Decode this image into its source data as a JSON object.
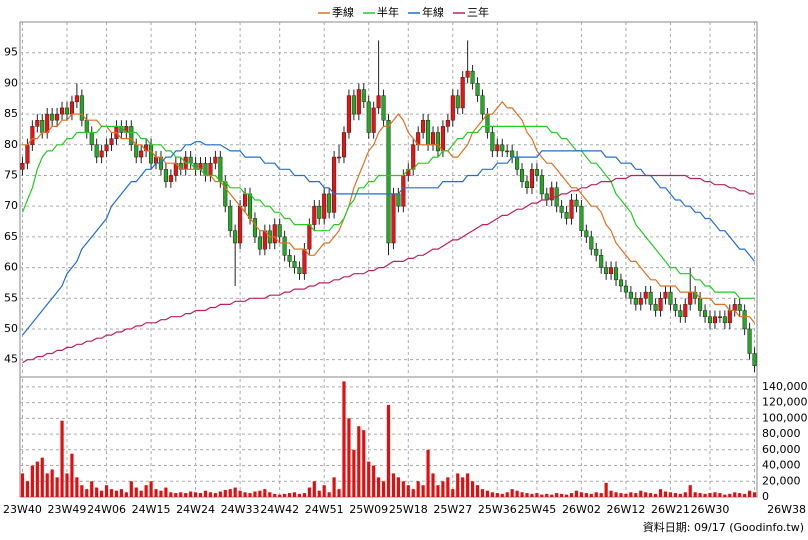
{
  "chart_data": {
    "type": "candlestick",
    "up_color": "#ee1111",
    "down_color": "#22aa22",
    "grid": true,
    "categories": [
      "23W40",
      null,
      null,
      null,
      null,
      null,
      null,
      null,
      null,
      "23W49",
      null,
      null,
      null,
      null,
      null,
      null,
      null,
      "24W06",
      null,
      null,
      null,
      null,
      null,
      null,
      null,
      null,
      "24W15",
      null,
      null,
      null,
      null,
      null,
      null,
      null,
      null,
      "24W24",
      null,
      null,
      null,
      null,
      null,
      null,
      null,
      null,
      "24W33",
      null,
      null,
      null,
      null,
      null,
      null,
      null,
      "24W42",
      null,
      null,
      null,
      null,
      null,
      null,
      null,
      null,
      "24W51",
      null,
      null,
      null,
      null,
      null,
      null,
      null,
      null,
      "25W09",
      null,
      null,
      null,
      null,
      null,
      null,
      null,
      "25W18",
      null,
      null,
      null,
      null,
      null,
      null,
      null,
      null,
      "25W27",
      null,
      null,
      null,
      null,
      null,
      null,
      null,
      null,
      "25W36",
      null,
      null,
      null,
      null,
      null,
      null,
      null,
      "25W45",
      null,
      null,
      null,
      null,
      null,
      null,
      null,
      null,
      "26W02",
      null,
      null,
      null,
      null,
      null,
      null,
      null,
      null,
      "26W12",
      null,
      null,
      null,
      null,
      null,
      null,
      null,
      null,
      "26W21",
      null,
      null,
      null,
      null,
      null,
      null,
      null,
      "26W30",
      null,
      null,
      null,
      null,
      null,
      null,
      null,
      null,
      "26W38"
    ],
    "open": [
      76,
      77,
      80,
      83,
      84,
      82,
      85,
      84,
      85,
      86,
      85,
      87,
      88,
      84,
      82,
      80,
      78,
      79,
      80,
      81,
      83,
      82,
      83,
      80,
      78,
      79,
      80,
      77,
      78,
      76,
      74,
      75,
      77,
      76,
      78,
      77,
      76,
      77,
      75,
      77,
      78,
      74,
      70,
      66,
      64,
      70,
      72,
      68,
      65,
      63,
      66,
      64,
      67,
      65,
      62,
      61,
      60,
      59,
      63,
      67,
      70,
      68,
      72,
      69,
      78,
      78,
      82,
      88,
      85,
      89,
      87,
      82,
      86,
      88,
      84,
      64,
      72,
      70,
      75,
      76,
      80,
      82,
      84,
      80,
      82,
      79,
      83,
      84,
      88,
      86,
      91,
      92,
      90,
      88,
      85,
      82,
      79,
      80,
      79,
      79,
      78,
      76,
      74,
      73,
      76,
      75,
      72,
      71,
      73,
      70,
      69,
      68,
      71,
      70,
      66,
      65,
      63,
      62,
      60,
      59,
      60,
      58,
      57,
      56,
      55,
      54,
      55,
      56,
      54,
      53,
      55,
      56,
      54,
      53,
      52,
      54,
      56,
      55,
      53,
      52,
      51,
      52,
      52,
      51,
      53,
      54,
      53,
      50,
      46
    ],
    "high": [
      78,
      81,
      84,
      85,
      85,
      86,
      86,
      86,
      87,
      87,
      88,
      90,
      89,
      85,
      83,
      81,
      80,
      81,
      82,
      84,
      84,
      84,
      84,
      81,
      80,
      81,
      81,
      79,
      79,
      77,
      76,
      78,
      78,
      79,
      79,
      78,
      78,
      78,
      78,
      79,
      79,
      75,
      71,
      67,
      71,
      73,
      73,
      69,
      66,
      67,
      67,
      68,
      68,
      66,
      63,
      62,
      61,
      64,
      68,
      71,
      71,
      73,
      73,
      79,
      80,
      83,
      89,
      89,
      90,
      90,
      88,
      87,
      97,
      89,
      85,
      73,
      73,
      76,
      77,
      81,
      83,
      85,
      85,
      83,
      83,
      84,
      85,
      89,
      89,
      92,
      97,
      93,
      91,
      89,
      86,
      83,
      81,
      81,
      80,
      80,
      79,
      77,
      75,
      77,
      77,
      76,
      73,
      74,
      74,
      71,
      70,
      72,
      72,
      71,
      67,
      66,
      64,
      63,
      61,
      61,
      61,
      59,
      58,
      57,
      56,
      56,
      57,
      57,
      55,
      56,
      57,
      57,
      55,
      54,
      55,
      60,
      57,
      56,
      54,
      53,
      53,
      53,
      53,
      54,
      55,
      55,
      54,
      51,
      47
    ],
    "low": [
      75,
      76,
      79,
      82,
      81,
      81,
      83,
      83,
      84,
      84,
      84,
      86,
      83,
      81,
      79,
      77,
      77,
      78,
      79,
      80,
      81,
      81,
      79,
      77,
      77,
      78,
      76,
      76,
      75,
      73,
      73,
      74,
      75,
      75,
      76,
      75,
      75,
      74,
      74,
      76,
      73,
      69,
      65,
      57,
      63,
      69,
      67,
      64,
      62,
      62,
      63,
      63,
      64,
      61,
      60,
      59,
      58,
      58,
      62,
      66,
      67,
      67,
      68,
      68,
      77,
      77,
      81,
      84,
      84,
      86,
      81,
      81,
      85,
      83,
      62,
      63,
      69,
      69,
      74,
      75,
      79,
      81,
      79,
      79,
      78,
      78,
      82,
      83,
      85,
      85,
      90,
      89,
      87,
      84,
      81,
      78,
      78,
      78,
      78,
      77,
      75,
      73,
      72,
      72,
      74,
      71,
      70,
      70,
      69,
      68,
      67,
      67,
      69,
      65,
      64,
      62,
      61,
      59,
      58,
      58,
      57,
      56,
      55,
      54,
      53,
      53,
      54,
      53,
      52,
      52,
      54,
      53,
      52,
      51,
      51,
      53,
      54,
      52,
      51,
      50,
      50,
      51,
      50,
      50,
      52,
      52,
      49,
      45,
      43
    ],
    "close": [
      77,
      80,
      83,
      84,
      82,
      85,
      84,
      85,
      86,
      85,
      87,
      88,
      84,
      82,
      80,
      78,
      79,
      80,
      81,
      83,
      82,
      83,
      80,
      78,
      79,
      80,
      77,
      78,
      76,
      74,
      75,
      77,
      76,
      78,
      77,
      76,
      77,
      75,
      77,
      78,
      74,
      70,
      66,
      64,
      70,
      72,
      68,
      65,
      63,
      66,
      64,
      67,
      65,
      62,
      61,
      60,
      59,
      63,
      67,
      70,
      68,
      72,
      69,
      78,
      78,
      82,
      88,
      85,
      89,
      87,
      82,
      86,
      88,
      84,
      64,
      72,
      70,
      75,
      76,
      80,
      82,
      84,
      80,
      82,
      79,
      83,
      84,
      88,
      86,
      91,
      92,
      90,
      88,
      85,
      82,
      79,
      80,
      79,
      79,
      78,
      76,
      74,
      73,
      76,
      75,
      72,
      71,
      73,
      70,
      69,
      68,
      71,
      70,
      66,
      65,
      63,
      62,
      60,
      59,
      60,
      58,
      57,
      56,
      55,
      54,
      55,
      56,
      54,
      53,
      55,
      56,
      54,
      53,
      52,
      54,
      56,
      55,
      53,
      52,
      51,
      52,
      52,
      51,
      53,
      54,
      53,
      50,
      46,
      44
    ],
    "series": [
      {
        "name": "季線",
        "color": "#e07020",
        "values": [
          80,
          80,
          81,
          81,
          82,
          82,
          83,
          83,
          84,
          84,
          85,
          85,
          85,
          84,
          84,
          84,
          83,
          83,
          82,
          82,
          81,
          81,
          81,
          80,
          80,
          79,
          79,
          78,
          78,
          77,
          77,
          77,
          76,
          76,
          76,
          76,
          76,
          75,
          75,
          74,
          74,
          73,
          72,
          71,
          70,
          69,
          68,
          67,
          66,
          66,
          65,
          65,
          64,
          64,
          64,
          63,
          63,
          63,
          62,
          62,
          63,
          64,
          64,
          65,
          66,
          68,
          70,
          73,
          75,
          77,
          79,
          80,
          82,
          83,
          83,
          84,
          85,
          84,
          82,
          81,
          80,
          80,
          80,
          80,
          80,
          79,
          79,
          78,
          78,
          79,
          80,
          82,
          83,
          84,
          85,
          85,
          86,
          87,
          86,
          86,
          85,
          84,
          82,
          81,
          79,
          78,
          77,
          77,
          76,
          75,
          74,
          73,
          73,
          72,
          71,
          70,
          70,
          69,
          67,
          66,
          64,
          63,
          62,
          61,
          61,
          60,
          59,
          58,
          58,
          57,
          57,
          57,
          57,
          56,
          56,
          56,
          56,
          55,
          55,
          55,
          54,
          54,
          54,
          53,
          53,
          52,
          52,
          52,
          51
        ]
      },
      {
        "name": "半年",
        "color": "#22cc22",
        "values": [
          69,
          71,
          73,
          76,
          78,
          79,
          79,
          80,
          80,
          81,
          81,
          82,
          82,
          82,
          82,
          82,
          83,
          83,
          83,
          83,
          83,
          82,
          82,
          82,
          81,
          81,
          80,
          80,
          80,
          79,
          79,
          78,
          78,
          77,
          77,
          76,
          76,
          75,
          75,
          75,
          74,
          74,
          73,
          73,
          73,
          72,
          72,
          71,
          71,
          70,
          70,
          69,
          69,
          68,
          68,
          67,
          67,
          67,
          67,
          66,
          66,
          66,
          66,
          67,
          67,
          68,
          70,
          71,
          73,
          73,
          74,
          74,
          75,
          75,
          75,
          75,
          75,
          75,
          76,
          76,
          77,
          77,
          77,
          78,
          78,
          79,
          79,
          80,
          81,
          81,
          82,
          82,
          82,
          83,
          83,
          83,
          83,
          83,
          83,
          83,
          83,
          83,
          83,
          83,
          83,
          83,
          83,
          82,
          82,
          81,
          81,
          80,
          79,
          79,
          78,
          77,
          77,
          76,
          75,
          74,
          72,
          71,
          70,
          69,
          67,
          66,
          65,
          64,
          63,
          62,
          61,
          60,
          60,
          59,
          59,
          59,
          58,
          58,
          57,
          57,
          56,
          56,
          56,
          56,
          56,
          55,
          55,
          55,
          55
        ]
      },
      {
        "name": "年線",
        "color": "#1e6fd0",
        "values": [
          49,
          50,
          51,
          52,
          53,
          54,
          55,
          56,
          57,
          59,
          60,
          61,
          63,
          64,
          65,
          66,
          67,
          68,
          70,
          71,
          72,
          73,
          74,
          74,
          75,
          76,
          76,
          77,
          77,
          78,
          78,
          79,
          79,
          80,
          80,
          80.5,
          80.5,
          80,
          80,
          80,
          80,
          79.5,
          79,
          79,
          79,
          78,
          78,
          78,
          78,
          77,
          77,
          77,
          76,
          76,
          76,
          75,
          75,
          75,
          74,
          74,
          74,
          73,
          73,
          72,
          72,
          72,
          72,
          72,
          72,
          72,
          72,
          72,
          72,
          72,
          72,
          72,
          72,
          73,
          73,
          73,
          73,
          73,
          73,
          73,
          73,
          74,
          74,
          74,
          74,
          74,
          75,
          75,
          75,
          76,
          76,
          76,
          77,
          77,
          77,
          78,
          78,
          78,
          78,
          78,
          78,
          79,
          79,
          79,
          79,
          79,
          79,
          79,
          79,
          79,
          79,
          79,
          79,
          79,
          78,
          78,
          78,
          77,
          77,
          77,
          76,
          76,
          75,
          75,
          74,
          73,
          73,
          72,
          71,
          71,
          70,
          70,
          69,
          69,
          68,
          68,
          67,
          66,
          66,
          65,
          64,
          63,
          63,
          62,
          61
        ]
      },
      {
        "name": "三年",
        "color": "#c0205a",
        "values": [
          44.5,
          45,
          45,
          45.5,
          45.5,
          46,
          46,
          46.5,
          46.5,
          47,
          47,
          47.5,
          47.5,
          48,
          48,
          48.5,
          48.5,
          49,
          49,
          49.5,
          49.5,
          50,
          50,
          50.5,
          50.5,
          51,
          51,
          51,
          51.5,
          51.5,
          52,
          52,
          52,
          52.5,
          52.5,
          53,
          53,
          53,
          53.5,
          53.5,
          54,
          54,
          54,
          54.5,
          54.5,
          54.5,
          55,
          55,
          55,
          55,
          55.5,
          55.5,
          55.5,
          56,
          56,
          56.5,
          56.5,
          56.5,
          57,
          57,
          57.5,
          57.5,
          57.5,
          58,
          58,
          58.5,
          58.5,
          59,
          59,
          59,
          59.5,
          59.5,
          60,
          60,
          60.5,
          61,
          61,
          61,
          61.5,
          61.5,
          62,
          62,
          62.5,
          63,
          63,
          63.5,
          64,
          64.5,
          64.5,
          65,
          65.5,
          66,
          66.5,
          67,
          67,
          67.5,
          68,
          68.5,
          68.5,
          69,
          69.5,
          69.5,
          70,
          70.5,
          70.5,
          71,
          71,
          71.5,
          71.5,
          72,
          72,
          72.5,
          72.5,
          73,
          73,
          73.5,
          73.5,
          74,
          74,
          74,
          74.5,
          74.5,
          74.5,
          75,
          75,
          75,
          75,
          75,
          75,
          75,
          75,
          75,
          75,
          75,
          75,
          74.5,
          74.5,
          74.5,
          74,
          74,
          73.5,
          73.5,
          73.5,
          73,
          73,
          72.5,
          72.5,
          72,
          72
        ]
      }
    ],
    "ylim": [
      42.5,
      100
    ],
    "yticks": [
      45,
      50,
      55,
      60,
      65,
      70,
      75,
      80,
      85,
      90,
      95
    ],
    "volume": {
      "color": "#e01010",
      "values": [
        30000,
        20000,
        40000,
        45000,
        50000,
        30000,
        35000,
        25000,
        97000,
        30000,
        55000,
        25000,
        15000,
        10000,
        20000,
        12000,
        8000,
        15000,
        10000,
        8000,
        10000,
        6000,
        20000,
        12000,
        8000,
        15000,
        20000,
        10000,
        8000,
        12000,
        6000,
        5000,
        6000,
        5000,
        7000,
        6000,
        5000,
        8000,
        6000,
        5000,
        7000,
        9000,
        10000,
        12000,
        8000,
        6000,
        5000,
        7000,
        8000,
        10000,
        6000,
        4000,
        3000,
        4000,
        5000,
        6000,
        4000,
        5000,
        12000,
        20000,
        8000,
        15000,
        6000,
        25000,
        10000,
        147000,
        100000,
        60000,
        90000,
        85000,
        45000,
        40000,
        25000,
        20000,
        117000,
        30000,
        25000,
        20000,
        15000,
        10000,
        20000,
        15000,
        60000,
        30000,
        15000,
        20000,
        25000,
        10000,
        30000,
        25000,
        30000,
        20000,
        15000,
        10000,
        8000,
        6000,
        5000,
        4000,
        6000,
        10000,
        8000,
        6000,
        5000,
        4000,
        5000,
        3000,
        4000,
        3000,
        5000,
        4000,
        3000,
        5000,
        8000,
        6000,
        5000,
        4000,
        6000,
        5000,
        18000,
        8000,
        6000,
        5000,
        4000,
        6000,
        5000,
        8000,
        6000,
        5000,
        4000,
        10000,
        7000,
        6000,
        5000,
        4000,
        6000,
        15000,
        6000,
        5000,
        4000,
        5000,
        6000,
        5000,
        3000,
        4000,
        6000,
        5000,
        4000,
        8000,
        6000
      ],
      "ylim": [
        0,
        150000
      ],
      "yticks": [
        0,
        {
          "value": 20000,
          "label": "20,000"
        },
        {
          "value": 40000,
          "label": "40,000"
        },
        {
          "value": 60000,
          "label": "60,000"
        },
        {
          "value": 80000,
          "label": "80,000"
        },
        {
          "value": 100000,
          "label": "100,000"
        },
        {
          "value": 120000,
          "label": "120,000"
        },
        {
          "value": 140000,
          "label": "140,000"
        }
      ]
    },
    "footnote": "資料日期: 09/17 (Goodinfo.tw)"
  }
}
